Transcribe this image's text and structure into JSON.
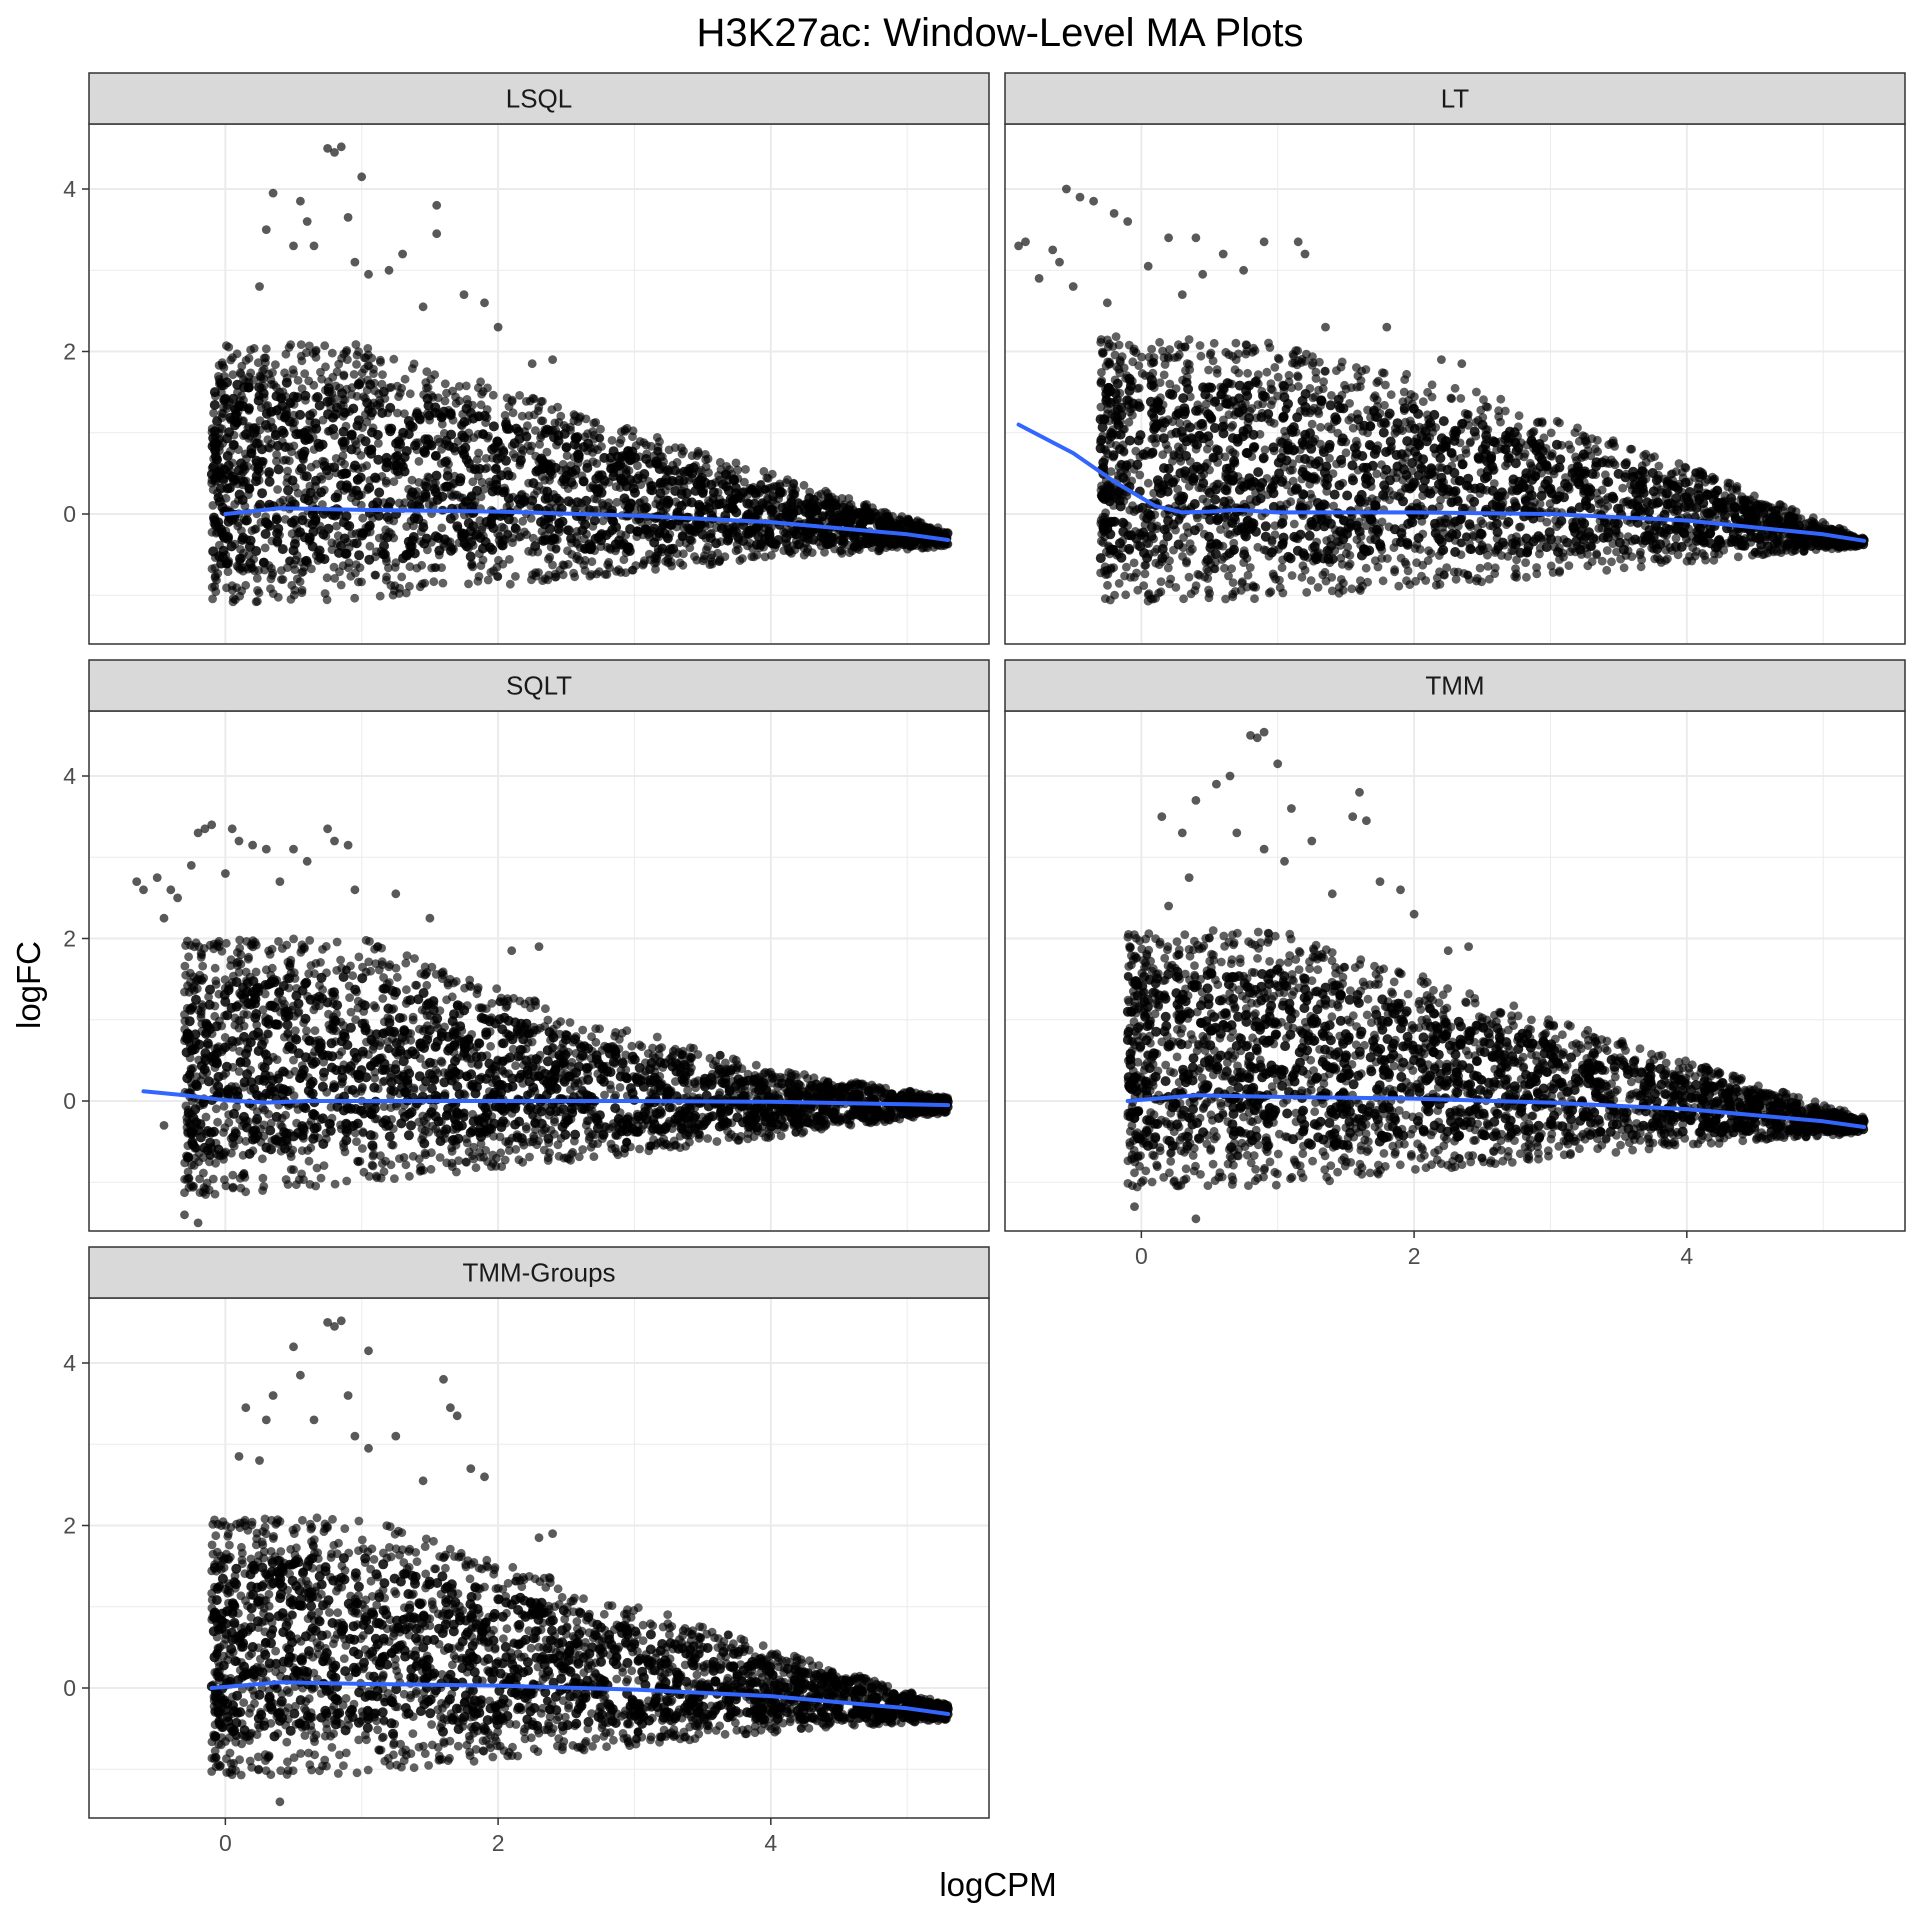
{
  "title": "H3K27ac: Window-Level MA Plots",
  "colors": {
    "points": "#000000",
    "trend": "#3366ff",
    "strip_fill": "#d9d9d9",
    "grid": "#ebebeb",
    "border": "#333333"
  },
  "chart_data": {
    "type": "scatter",
    "title": "H3K27ac: Window-Level MA Plots",
    "xlabel": "logCPM",
    "ylabel": "logFC",
    "xlim": [
      -1,
      5.6
    ],
    "ylim": [
      -1.6,
      4.8
    ],
    "x_ticks": [
      0,
      2,
      4
    ],
    "y_ticks": [
      0,
      2,
      4
    ],
    "grid": true,
    "layout": "facet grid, 2 columns, 3 rows",
    "panels": [
      {
        "name": "LSQL",
        "cloud": {
          "x_min": -0.1,
          "x_max": 5.3,
          "upper_logFC_at_x": [
            [
              -0.1,
              2.1
            ],
            [
              1.0,
              2.1
            ],
            [
              2.5,
              1.3
            ],
            [
              4.0,
              0.5
            ],
            [
              5.3,
              -0.2
            ]
          ],
          "lower_logFC_at_x": [
            [
              -0.1,
              -1.1
            ],
            [
              1.0,
              -1.05
            ],
            [
              2.5,
              -0.8
            ],
            [
              4.0,
              -0.55
            ],
            [
              5.3,
              -0.4
            ]
          ]
        },
        "outliers": [
          [
            0.75,
            4.5
          ],
          [
            0.8,
            4.45
          ],
          [
            0.85,
            4.52
          ],
          [
            0.55,
            3.85
          ],
          [
            0.6,
            3.6
          ],
          [
            1.0,
            4.15
          ],
          [
            1.55,
            3.8
          ],
          [
            1.55,
            3.45
          ],
          [
            1.2,
            3.0
          ],
          [
            0.3,
            3.5
          ],
          [
            0.5,
            3.3
          ],
          [
            0.25,
            2.8
          ],
          [
            0.95,
            3.1
          ],
          [
            1.3,
            3.2
          ],
          [
            1.75,
            2.7
          ],
          [
            1.9,
            2.6
          ],
          [
            2.4,
            1.9
          ],
          [
            2.0,
            2.3
          ],
          [
            0.35,
            3.95
          ],
          [
            0.65,
            3.3
          ],
          [
            0.9,
            3.65
          ],
          [
            1.45,
            2.55
          ],
          [
            2.25,
            1.85
          ],
          [
            1.05,
            2.95
          ]
        ],
        "trend": [
          [
            0,
            0.0
          ],
          [
            0.4,
            0.07
          ],
          [
            1,
            0.05
          ],
          [
            2,
            0.03
          ],
          [
            3,
            -0.02
          ],
          [
            4,
            -0.1
          ],
          [
            5,
            -0.25
          ],
          [
            5.3,
            -0.32
          ]
        ]
      },
      {
        "name": "LT",
        "cloud": {
          "x_min": -0.3,
          "x_max": 5.3,
          "upper_logFC_at_x": [
            [
              -0.3,
              2.2
            ],
            [
              1.0,
              2.1
            ],
            [
              2.5,
              1.5
            ],
            [
              4.0,
              0.6
            ],
            [
              5.3,
              -0.3
            ]
          ],
          "lower_logFC_at_x": [
            [
              -0.3,
              -1.1
            ],
            [
              1.0,
              -1.05
            ],
            [
              2.5,
              -0.85
            ],
            [
              4.0,
              -0.6
            ],
            [
              5.3,
              -0.4
            ]
          ]
        },
        "outliers": [
          [
            -0.9,
            3.3
          ],
          [
            -0.85,
            3.35
          ],
          [
            -0.6,
            3.1
          ],
          [
            -0.55,
            4.0
          ],
          [
            -0.45,
            3.9
          ],
          [
            -0.35,
            3.85
          ],
          [
            -0.2,
            3.7
          ],
          [
            -0.1,
            3.6
          ],
          [
            0.2,
            3.4
          ],
          [
            0.4,
            3.4
          ],
          [
            0.6,
            3.2
          ],
          [
            0.9,
            3.35
          ],
          [
            1.15,
            3.35
          ],
          [
            1.2,
            3.2
          ],
          [
            -0.75,
            2.9
          ],
          [
            -0.65,
            3.25
          ],
          [
            -0.5,
            2.8
          ],
          [
            0.05,
            3.05
          ],
          [
            0.45,
            2.95
          ],
          [
            0.75,
            3.0
          ],
          [
            1.35,
            2.3
          ],
          [
            1.8,
            2.3
          ],
          [
            2.2,
            1.9
          ],
          [
            2.35,
            1.85
          ],
          [
            -0.25,
            2.6
          ],
          [
            0.3,
            2.7
          ]
        ],
        "trend": [
          [
            -0.9,
            1.1
          ],
          [
            -0.5,
            0.75
          ],
          [
            -0.2,
            0.4
          ],
          [
            0.1,
            0.1
          ],
          [
            0.3,
            0.02
          ],
          [
            0.5,
            0.03
          ],
          [
            0.7,
            0.05
          ],
          [
            1,
            0.02
          ],
          [
            2,
            0.02
          ],
          [
            3,
            0.0
          ],
          [
            4,
            -0.08
          ],
          [
            5,
            -0.25
          ],
          [
            5.3,
            -0.33
          ]
        ]
      },
      {
        "name": "SQLT",
        "cloud": {
          "x_min": -0.3,
          "x_max": 5.3,
          "upper_logFC_at_x": [
            [
              -0.3,
              2.0
            ],
            [
              1.0,
              2.0
            ],
            [
              2.5,
              1.1
            ],
            [
              4.0,
              0.4
            ],
            [
              5.3,
              0.05
            ]
          ],
          "lower_logFC_at_x": [
            [
              -0.3,
              -1.2
            ],
            [
              1.0,
              -1.0
            ],
            [
              2.5,
              -0.75
            ],
            [
              4.0,
              -0.45
            ],
            [
              5.3,
              -0.15
            ]
          ]
        },
        "outliers": [
          [
            -0.65,
            2.7
          ],
          [
            -0.6,
            2.6
          ],
          [
            -0.5,
            2.75
          ],
          [
            -0.4,
            2.6
          ],
          [
            -0.35,
            2.5
          ],
          [
            -0.25,
            2.9
          ],
          [
            -0.2,
            3.3
          ],
          [
            -0.15,
            3.35
          ],
          [
            -0.1,
            3.4
          ],
          [
            0.05,
            3.35
          ],
          [
            0.1,
            3.2
          ],
          [
            0.2,
            3.15
          ],
          [
            0.3,
            3.1
          ],
          [
            0.5,
            3.1
          ],
          [
            0.6,
            2.95
          ],
          [
            0.75,
            3.35
          ],
          [
            0.8,
            3.2
          ],
          [
            0.9,
            3.15
          ],
          [
            0.95,
            2.6
          ],
          [
            1.25,
            2.55
          ],
          [
            1.5,
            2.25
          ],
          [
            -0.45,
            2.25
          ],
          [
            0.0,
            2.8
          ],
          [
            0.4,
            2.7
          ],
          [
            2.1,
            1.85
          ],
          [
            2.3,
            1.9
          ],
          [
            -0.45,
            -0.3
          ],
          [
            -0.3,
            -1.4
          ],
          [
            -0.2,
            -1.5
          ]
        ],
        "trend": [
          [
            -0.6,
            0.12
          ],
          [
            -0.3,
            0.07
          ],
          [
            0,
            0.01
          ],
          [
            0.3,
            -0.02
          ],
          [
            0.6,
            0.0
          ],
          [
            1,
            0.0
          ],
          [
            2,
            0.0
          ],
          [
            3,
            0.0
          ],
          [
            4,
            -0.01
          ],
          [
            5,
            -0.04
          ],
          [
            5.3,
            -0.05
          ]
        ]
      },
      {
        "name": "TMM",
        "cloud": {
          "x_min": -0.1,
          "x_max": 5.3,
          "upper_logFC_at_x": [
            [
              -0.1,
              2.1
            ],
            [
              1.0,
              2.1
            ],
            [
              2.5,
              1.3
            ],
            [
              4.0,
              0.5
            ],
            [
              5.3,
              -0.2
            ]
          ],
          "lower_logFC_at_x": [
            [
              -0.1,
              -1.1
            ],
            [
              1.0,
              -1.05
            ],
            [
              2.5,
              -0.8
            ],
            [
              4.0,
              -0.55
            ],
            [
              5.3,
              -0.4
            ]
          ]
        },
        "outliers": [
          [
            0.8,
            4.5
          ],
          [
            0.85,
            4.47
          ],
          [
            0.9,
            4.54
          ],
          [
            0.55,
            3.9
          ],
          [
            0.65,
            4.0
          ],
          [
            1.0,
            4.15
          ],
          [
            1.6,
            3.8
          ],
          [
            1.55,
            3.5
          ],
          [
            1.65,
            3.45
          ],
          [
            0.15,
            3.5
          ],
          [
            0.3,
            3.3
          ],
          [
            0.35,
            2.75
          ],
          [
            0.9,
            3.1
          ],
          [
            1.25,
            3.2
          ],
          [
            1.75,
            2.7
          ],
          [
            1.9,
            2.6
          ],
          [
            2.4,
            1.9
          ],
          [
            2.0,
            2.3
          ],
          [
            0.4,
            3.7
          ],
          [
            0.7,
            3.3
          ],
          [
            1.1,
            3.6
          ],
          [
            1.4,
            2.55
          ],
          [
            2.25,
            1.85
          ],
          [
            1.05,
            2.95
          ],
          [
            0.2,
            2.4
          ],
          [
            -0.05,
            -1.3
          ],
          [
            0.4,
            -1.45
          ]
        ],
        "trend": [
          [
            -0.1,
            0.0
          ],
          [
            0.4,
            0.07
          ],
          [
            1,
            0.05
          ],
          [
            2,
            0.03
          ],
          [
            3,
            -0.02
          ],
          [
            4,
            -0.1
          ],
          [
            5,
            -0.25
          ],
          [
            5.3,
            -0.32
          ]
        ]
      },
      {
        "name": "TMM-Groups",
        "cloud": {
          "x_min": -0.1,
          "x_max": 5.3,
          "upper_logFC_at_x": [
            [
              -0.1,
              2.1
            ],
            [
              1.0,
              2.1
            ],
            [
              2.5,
              1.3
            ],
            [
              4.0,
              0.5
            ],
            [
              5.3,
              -0.2
            ]
          ],
          "lower_logFC_at_x": [
            [
              -0.1,
              -1.1
            ],
            [
              1.0,
              -1.05
            ],
            [
              2.5,
              -0.8
            ],
            [
              4.0,
              -0.55
            ],
            [
              5.3,
              -0.4
            ]
          ]
        },
        "outliers": [
          [
            0.75,
            4.5
          ],
          [
            0.8,
            4.45
          ],
          [
            0.85,
            4.52
          ],
          [
            0.55,
            3.85
          ],
          [
            0.5,
            4.2
          ],
          [
            1.05,
            4.15
          ],
          [
            1.6,
            3.8
          ],
          [
            1.65,
            3.45
          ],
          [
            1.7,
            3.35
          ],
          [
            0.15,
            3.45
          ],
          [
            0.3,
            3.3
          ],
          [
            0.25,
            2.8
          ],
          [
            0.95,
            3.1
          ],
          [
            1.25,
            3.1
          ],
          [
            1.8,
            2.7
          ],
          [
            1.9,
            2.6
          ],
          [
            2.4,
            1.9
          ],
          [
            2.3,
            1.85
          ],
          [
            0.35,
            3.6
          ],
          [
            0.65,
            3.3
          ],
          [
            0.9,
            3.6
          ],
          [
            1.45,
            2.55
          ],
          [
            1.05,
            2.95
          ],
          [
            0.1,
            2.85
          ],
          [
            0.4,
            -1.4
          ]
        ],
        "trend": [
          [
            -0.1,
            0.0
          ],
          [
            0.4,
            0.07
          ],
          [
            1,
            0.05
          ],
          [
            2,
            0.03
          ],
          [
            3,
            -0.02
          ],
          [
            4,
            -0.1
          ],
          [
            5,
            -0.25
          ],
          [
            5.3,
            -0.32
          ]
        ]
      }
    ]
  }
}
